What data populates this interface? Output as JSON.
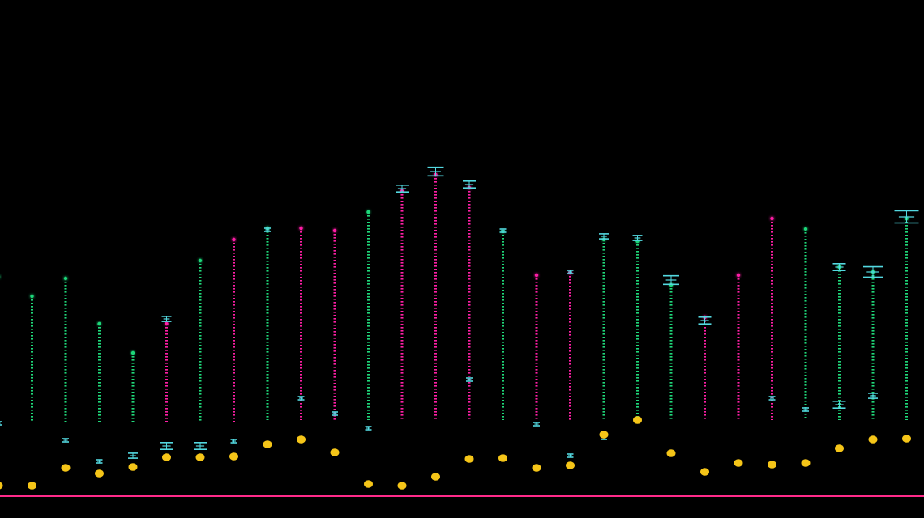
{
  "visualizer": {
    "colors": {
      "background": "#000000",
      "green": "#1fd87a",
      "magenta": "#ff1fa6",
      "pale": "#c9b3c8",
      "white": "#ffffff",
      "cyan": "#53d8e0",
      "yellow": "#f5c518",
      "baseline": "#ff2a8a"
    },
    "bars": [
      {
        "top": 342,
        "bottom": 520,
        "color": "green",
        "seg": null,
        "cap": null,
        "small": [
          {
            "y": 523,
            "s": 0
          }
        ],
        "dot": 600
      },
      {
        "top": 366,
        "bottom": 522,
        "color": "green",
        "seg": [
          380,
          384,
          "pale"
        ],
        "cap": null,
        "small": [],
        "dot": 600
      },
      {
        "top": 344,
        "bottom": 521,
        "color": "green",
        "seg": [
          382,
          392,
          "pale"
        ],
        "cap": null,
        "small": [
          {
            "y": 544,
            "s": 0
          }
        ],
        "dot": 578
      },
      {
        "top": 400,
        "bottom": 521,
        "color": "green",
        "seg": [
          410,
          422,
          "white"
        ],
        "cap": null,
        "small": [
          {
            "y": 570,
            "s": 0
          }
        ],
        "dot": 585
      },
      {
        "top": 436,
        "bottom": 521,
        "color": "green",
        "seg": [
          438,
          466,
          "white"
        ],
        "cap": null,
        "small": [
          {
            "y": 563,
            "s": 1
          }
        ],
        "dot": 577
      },
      {
        "top": 400,
        "bottom": 521,
        "color": "magenta",
        "seg": [
          436,
          444,
          "white"
        ],
        "cap": {
          "y": 394,
          "s": 1
        },
        "small": [
          {
            "y": 551,
            "s": 2
          }
        ],
        "dot": 565
      },
      {
        "top": 322,
        "bottom": 521,
        "color": "green",
        "seg": [
          480,
          500,
          "pale"
        ],
        "cap": null,
        "small": [
          {
            "y": 551,
            "s": 2
          }
        ],
        "dot": 565
      },
      {
        "top": 296,
        "bottom": 521,
        "color": "magenta",
        "seg": [
          470,
          500,
          "magenta"
        ],
        "cap": null,
        "small": [
          {
            "y": 545,
            "s": 0
          }
        ],
        "dot": 564
      },
      {
        "top": 282,
        "bottom": 519,
        "color": "green",
        "seg": [
          390,
          420,
          "magenta"
        ],
        "cap": {
          "y": 284,
          "s": 0
        },
        "small": [],
        "dot": 549
      },
      {
        "top": 282,
        "bottom": 519,
        "color": "magenta",
        "seg": [
          380,
          440,
          "magenta"
        ],
        "cap": null,
        "small": [
          {
            "y": 492,
            "s": 0
          }
        ],
        "dot": 543
      },
      {
        "top": 285,
        "bottom": 519,
        "color": "magenta",
        "seg": [
          380,
          460,
          "magenta"
        ],
        "cap": null,
        "small": [
          {
            "y": 511,
            "s": 0
          }
        ],
        "dot": 559
      },
      {
        "top": 262,
        "bottom": 519,
        "color": "green",
        "seg": [
          340,
          420,
          "magenta"
        ],
        "cap": null,
        "small": [
          {
            "y": 529,
            "s": 0
          }
        ],
        "dot": 598
      },
      {
        "top": 236,
        "bottom": 519,
        "color": "magenta",
        "seg": [
          455,
          495,
          "magenta"
        ],
        "cap": {
          "y": 233,
          "s": 2
        },
        "small": [],
        "dot": 600
      },
      {
        "top": 216,
        "bottom": 519,
        "color": "magenta",
        "seg": [
          440,
          480,
          "magenta"
        ],
        "cap": {
          "y": 212,
          "s": 3
        },
        "small": [],
        "dot": 589
      },
      {
        "top": 232,
        "bottom": 518,
        "color": "magenta",
        "seg": [
          420,
          440,
          "magenta"
        ],
        "cap": {
          "y": 228,
          "s": 2
        },
        "small": [
          {
            "y": 469,
            "s": 0
          }
        ],
        "dot": 567
      },
      {
        "top": 286,
        "bottom": 519,
        "color": "green",
        "seg": [
          320,
          420,
          "magenta"
        ],
        "cap": {
          "y": 285,
          "s": 0
        },
        "small": [],
        "dot": 566
      },
      {
        "top": 340,
        "bottom": 519,
        "color": "magenta",
        "seg": [
          336,
          344,
          "white"
        ],
        "cap": null,
        "small": [
          {
            "y": 524,
            "s": 0
          }
        ],
        "dot": 578
      },
      {
        "top": 337,
        "bottom": 519,
        "color": "magenta",
        "seg": [
          335,
          345,
          "white"
        ],
        "cap": {
          "y": 336,
          "s": 0
        },
        "small": [
          {
            "y": 563,
            "s": 0
          }
        ],
        "dot": 575
      },
      {
        "top": 296,
        "bottom": 519,
        "color": "green",
        "seg": [
          330,
          440,
          "magenta"
        ],
        "cap": {
          "y": 292,
          "s": 1
        },
        "small": [
          {
            "y": 541,
            "s": 0
          }
        ],
        "dot": 537
      },
      {
        "top": 298,
        "bottom": 516,
        "color": "green",
        "seg": [
          410,
          450,
          "magenta"
        ],
        "cap": {
          "y": 294,
          "s": 1
        },
        "small": [],
        "dot": 519
      },
      {
        "top": 352,
        "bottom": 519,
        "color": "green",
        "seg": [
          405,
          430,
          "magenta"
        ],
        "cap": {
          "y": 346,
          "s": 3
        },
        "small": [],
        "dot": 560
      },
      {
        "top": 392,
        "bottom": 519,
        "color": "magenta",
        "seg": [
          384,
          398,
          "white"
        ],
        "cap": {
          "y": 396,
          "s": 2
        },
        "small": [],
        "dot": 583
      },
      {
        "top": 340,
        "bottom": 519,
        "color": "magenta",
        "seg": [
          342,
          370,
          "white"
        ],
        "cap": null,
        "small": [],
        "dot": 572
      },
      {
        "top": 270,
        "bottom": 519,
        "color": "magenta",
        "seg": [
          270,
          276,
          "cyan"
        ],
        "cap": null,
        "small": [
          {
            "y": 492,
            "s": 0
          }
        ],
        "dot": 574
      },
      {
        "top": 283,
        "bottom": 519,
        "color": "green",
        "seg": [
          284,
          300,
          "pale"
        ],
        "cap": null,
        "small": [
          {
            "y": 506,
            "s": 0
          }
        ],
        "dot": 572
      },
      {
        "top": 330,
        "bottom": 519,
        "color": "green",
        "seg": [
          420,
          480,
          "pale"
        ],
        "cap": {
          "y": 330,
          "s": 2
        },
        "small": [
          {
            "y": 500,
            "s": 2
          }
        ],
        "dot": 554
      },
      {
        "top": 336,
        "bottom": 519,
        "color": "green",
        "seg": [
          430,
          490,
          "pale"
        ],
        "cap": {
          "y": 336,
          "s": 4
        },
        "small": [
          {
            "y": 489,
            "s": 1
          }
        ],
        "dot": 543
      },
      {
        "top": 270,
        "bottom": 519,
        "color": "green",
        "seg": [
          476,
          484,
          "white"
        ],
        "cap": {
          "y": 268,
          "s": 5
        },
        "small": [],
        "dot": 542
      }
    ]
  }
}
